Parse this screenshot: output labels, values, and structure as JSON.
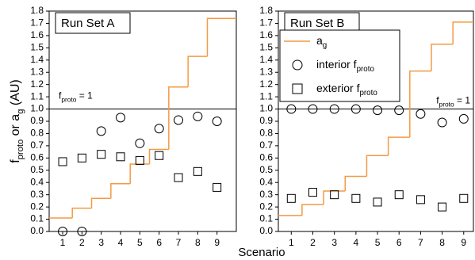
{
  "chart_data": [
    {
      "type": "step-scatter",
      "title": "Run Set A",
      "y_label": [
        "f",
        "proto",
        " or a",
        "g",
        " (AU)"
      ],
      "x_label": "Scenario",
      "x": [
        1,
        2,
        3,
        4,
        5,
        6,
        7,
        8,
        9
      ],
      "xlim": [
        0.3,
        10
      ],
      "xticks": [
        1,
        2,
        3,
        4,
        5,
        6,
        7,
        8,
        9
      ],
      "ylim": [
        0,
        1.8
      ],
      "yticks": [
        {
          "value": 0,
          "label": "0.0"
        },
        0.1,
        0.2,
        0.3,
        0.4,
        0.5,
        0.6,
        0.7,
        0.8,
        0.9,
        {
          "value": 1,
          "label": "1.0"
        },
        1.1,
        1.2,
        1.3,
        1.4,
        1.5,
        1.6,
        1.7,
        1.8
      ],
      "reference": {
        "value": 1,
        "label": [
          "f",
          "proto",
          " = 1"
        ]
      },
      "series": [
        {
          "name": [
            "a",
            "g"
          ],
          "color": "#f39a45",
          "marker": "step",
          "values": [
            0.11,
            0.19,
            0.27,
            0.39,
            0.55,
            0.67,
            1.18,
            1.43,
            1.74
          ]
        },
        {
          "name": [
            "interior f",
            "proto"
          ],
          "color": "#000000",
          "marker": "circle",
          "values": [
            0.0,
            0.0,
            0.82,
            0.93,
            0.72,
            0.84,
            0.91,
            0.94,
            0.9
          ]
        },
        {
          "name": [
            "exterior f",
            "proto"
          ],
          "color": "#000000",
          "marker": "square",
          "values": [
            0.57,
            0.6,
            0.63,
            0.61,
            0.58,
            0.62,
            0.44,
            0.49,
            0.36
          ]
        }
      ]
    },
    {
      "type": "step-scatter",
      "title": "Run Set B",
      "legend": true,
      "x": [
        1,
        2,
        3,
        4,
        5,
        6,
        7,
        8,
        9
      ],
      "xlim": [
        0.4,
        9.45
      ],
      "xticks": [
        1,
        2,
        3,
        4,
        5,
        6,
        7,
        8,
        9
      ],
      "ylim": [
        0,
        1.8
      ],
      "yticks": [
        {
          "value": 0,
          "label": "0.0"
        },
        0.1,
        0.2,
        0.3,
        0.4,
        0.5,
        0.6,
        0.7,
        0.8,
        0.9,
        {
          "value": 1,
          "label": "1.0"
        },
        1.1,
        1.2,
        1.3,
        1.4,
        1.5,
        1.6,
        1.7,
        1.8
      ],
      "reference": {
        "value": 1,
        "label": [
          "f",
          "proto",
          " = 1"
        ]
      },
      "series": [
        {
          "name": [
            "a",
            "g"
          ],
          "color": "#f39a45",
          "marker": "step",
          "values": [
            0.13,
            0.22,
            0.33,
            0.45,
            0.62,
            0.77,
            1.31,
            1.53,
            1.71
          ]
        },
        {
          "name": [
            "interior f",
            "proto"
          ],
          "color": "#000000",
          "marker": "circle",
          "values": [
            1.0,
            1.0,
            1.0,
            1.0,
            0.99,
            0.99,
            0.96,
            0.89,
            0.92
          ]
        },
        {
          "name": [
            "exterior f",
            "proto"
          ],
          "color": "#000000",
          "marker": "square",
          "values": [
            0.27,
            0.32,
            0.3,
            0.27,
            0.24,
            0.3,
            0.26,
            0.2,
            0.27
          ]
        }
      ]
    }
  ]
}
